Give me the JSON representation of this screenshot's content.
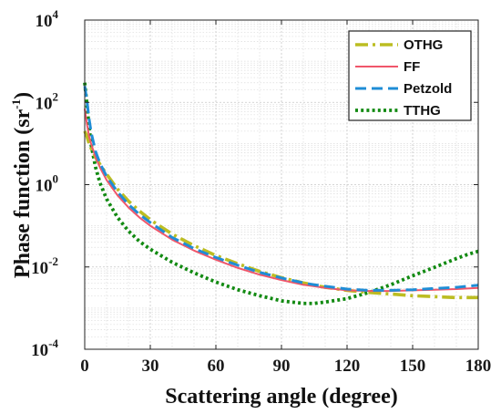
{
  "chart_data": {
    "type": "line",
    "xlabel": "Scattering angle (degree)",
    "ylabel": {
      "main": "Phase function (sr",
      "sup": "-1",
      "end": ")"
    },
    "scale": {
      "x": "linear",
      "y": "log"
    },
    "xlim": [
      0,
      180
    ],
    "ylim": [
      0.0001,
      10000
    ],
    "grid": true,
    "minor_grid": true,
    "legend_position": "top-right",
    "x_ticks": [
      {
        "value": 0,
        "label": "0"
      },
      {
        "value": 30,
        "label": "30"
      },
      {
        "value": 60,
        "label": "60"
      },
      {
        "value": 90,
        "label": "90"
      },
      {
        "value": 120,
        "label": "120"
      },
      {
        "value": 150,
        "label": "150"
      },
      {
        "value": 180,
        "label": "180"
      }
    ],
    "y_ticks": [
      {
        "value": 0.0001,
        "base": "10",
        "exp": "-4"
      },
      {
        "value": 0.01,
        "base": "10",
        "exp": "-2"
      },
      {
        "value": 1,
        "base": "10",
        "exp": "0"
      },
      {
        "value": 100,
        "base": "10",
        "exp": "2"
      },
      {
        "value": 10000,
        "base": "10",
        "exp": "4"
      }
    ],
    "x": [
      0,
      1,
      2,
      3,
      5,
      7,
      10,
      15,
      20,
      25,
      30,
      40,
      50,
      60,
      70,
      80,
      90,
      100,
      105,
      110,
      120,
      130,
      140,
      150,
      160,
      170,
      175,
      180
    ],
    "series": [
      {
        "name": "OTHG",
        "color": "#bcbd22",
        "dash": "dashdot",
        "values": [
          20,
          15,
          10,
          7.5,
          4.6,
          3.1,
          1.8,
          0.78,
          0.4,
          0.23,
          0.14,
          0.063,
          0.033,
          0.019,
          0.012,
          0.0078,
          0.0055,
          0.0041,
          0.0036,
          0.0032,
          0.0027,
          0.0024,
          0.0022,
          0.002,
          0.0019,
          0.0018,
          0.0018,
          0.0018
        ]
      },
      {
        "name": "FF",
        "color": "#f0566a",
        "dash": "solid",
        "values": [
          70,
          30,
          15,
          9.5,
          4.6,
          2.6,
          1.3,
          0.55,
          0.28,
          0.16,
          0.1,
          0.046,
          0.025,
          0.015,
          0.0095,
          0.0065,
          0.0048,
          0.0037,
          0.0034,
          0.0031,
          0.0027,
          0.0026,
          0.0026,
          0.0027,
          0.0028,
          0.0029,
          0.003,
          0.0031
        ]
      },
      {
        "name": "Petzold",
        "color": "#1f8dd6",
        "dash": "dashed",
        "values": [
          250,
          110,
          40,
          18,
          6.3,
          3.3,
          1.6,
          0.67,
          0.33,
          0.19,
          0.12,
          0.052,
          0.028,
          0.017,
          0.011,
          0.0074,
          0.0054,
          0.0041,
          0.0037,
          0.0034,
          0.0029,
          0.0027,
          0.0027,
          0.0028,
          0.003,
          0.0032,
          0.0034,
          0.0036
        ]
      },
      {
        "name": "TTHG",
        "color": "#128a12",
        "dash": "dotted",
        "values": [
          300,
          90,
          25,
          9,
          2.6,
          1.1,
          0.45,
          0.16,
          0.075,
          0.042,
          0.027,
          0.013,
          0.0072,
          0.0043,
          0.0028,
          0.002,
          0.0015,
          0.0013,
          0.0013,
          0.0014,
          0.0017,
          0.0024,
          0.0037,
          0.0061,
          0.0098,
          0.016,
          0.02,
          0.024
        ]
      }
    ]
  }
}
